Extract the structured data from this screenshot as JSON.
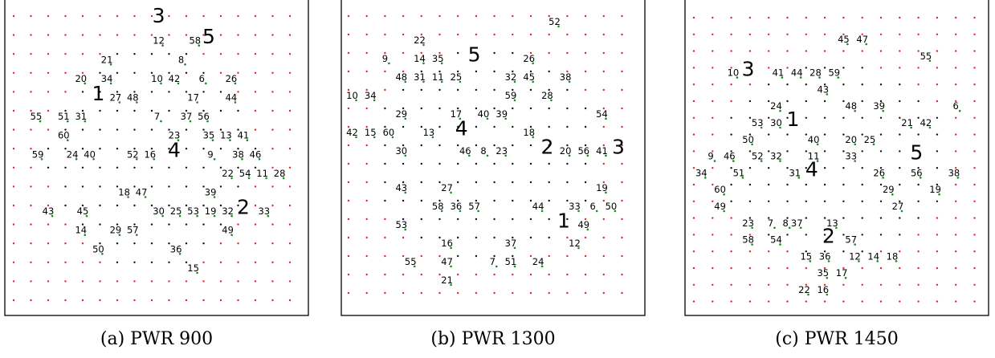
{
  "colors": {
    "outer_dot": "#e8202a",
    "inner_dot": "#111111",
    "marked_dot": "#1a8a1a",
    "blue_dot": "#2233aa",
    "text": "#000000"
  },
  "panels": [
    {
      "caption": "(a) PWR 900",
      "labels": [
        {
          "t": "3",
          "c": 8.4,
          "r": 0.0,
          "big": true
        },
        {
          "t": "12",
          "c": 8.4,
          "r": 1.3
        },
        {
          "t": "58",
          "c": 10.5,
          "r": 1.3
        },
        {
          "t": "5",
          "c": 11.3,
          "r": 1.1,
          "big": true
        },
        {
          "t": "21",
          "c": 5.4,
          "r": 2.3
        },
        {
          "t": "8",
          "c": 9.7,
          "r": 2.3
        },
        {
          "t": "20",
          "c": 3.9,
          "r": 3.3
        },
        {
          "t": "34",
          "c": 5.4,
          "r": 3.3
        },
        {
          "t": "10",
          "c": 8.3,
          "r": 3.3
        },
        {
          "t": "42",
          "c": 9.3,
          "r": 3.3
        },
        {
          "t": "6",
          "c": 10.9,
          "r": 3.3
        },
        {
          "t": "26",
          "c": 12.6,
          "r": 3.3
        },
        {
          "t": "1",
          "c": 4.9,
          "r": 4.1,
          "big": true
        },
        {
          "t": "27",
          "c": 5.9,
          "r": 4.3
        },
        {
          "t": "48",
          "c": 6.9,
          "r": 4.3
        },
        {
          "t": "17",
          "c": 10.4,
          "r": 4.3
        },
        {
          "t": "44",
          "c": 12.6,
          "r": 4.3
        },
        {
          "t": "55",
          "c": 1.3,
          "r": 5.3
        },
        {
          "t": "51",
          "c": 2.9,
          "r": 5.3
        },
        {
          "t": "31",
          "c": 3.9,
          "r": 5.3
        },
        {
          "t": "7",
          "c": 8.3,
          "r": 5.3
        },
        {
          "t": "37",
          "c": 10.0,
          "r": 5.3
        },
        {
          "t": "56",
          "c": 11.0,
          "r": 5.3
        },
        {
          "t": "60",
          "c": 2.9,
          "r": 6.3
        },
        {
          "t": "23",
          "c": 9.3,
          "r": 6.3
        },
        {
          "t": "35",
          "c": 11.3,
          "r": 6.3
        },
        {
          "t": "13",
          "c": 12.3,
          "r": 6.3
        },
        {
          "t": "41",
          "c": 13.3,
          "r": 6.3
        },
        {
          "t": "59",
          "c": 1.4,
          "r": 7.3
        },
        {
          "t": "24",
          "c": 3.4,
          "r": 7.3
        },
        {
          "t": "40",
          "c": 4.4,
          "r": 7.3
        },
        {
          "t": "52",
          "c": 6.9,
          "r": 7.3
        },
        {
          "t": "16",
          "c": 7.9,
          "r": 7.3
        },
        {
          "t": "4",
          "c": 9.3,
          "r": 7.1,
          "big": true
        },
        {
          "t": "9",
          "c": 11.4,
          "r": 7.3
        },
        {
          "t": "38",
          "c": 13.0,
          "r": 7.3
        },
        {
          "t": "46",
          "c": 14.0,
          "r": 7.3
        },
        {
          "t": "22",
          "c": 12.4,
          "r": 8.3
        },
        {
          "t": "54",
          "c": 13.4,
          "r": 8.3
        },
        {
          "t": "11",
          "c": 14.4,
          "r": 8.3
        },
        {
          "t": "28",
          "c": 15.4,
          "r": 8.3
        },
        {
          "t": "18",
          "c": 6.4,
          "r": 9.3
        },
        {
          "t": "47",
          "c": 7.4,
          "r": 9.3
        },
        {
          "t": "39",
          "c": 11.4,
          "r": 9.3
        },
        {
          "t": "43",
          "c": 2.0,
          "r": 10.3
        },
        {
          "t": "45",
          "c": 4.0,
          "r": 10.3
        },
        {
          "t": "30",
          "c": 8.4,
          "r": 10.3
        },
        {
          "t": "25",
          "c": 9.4,
          "r": 10.3
        },
        {
          "t": "53",
          "c": 10.4,
          "r": 10.3
        },
        {
          "t": "19",
          "c": 11.4,
          "r": 10.3
        },
        {
          "t": "32",
          "c": 12.4,
          "r": 10.3
        },
        {
          "t": "2",
          "c": 13.3,
          "r": 10.1,
          "big": true
        },
        {
          "t": "33",
          "c": 14.5,
          "r": 10.3
        },
        {
          "t": "14",
          "c": 3.9,
          "r": 11.3
        },
        {
          "t": "29",
          "c": 5.9,
          "r": 11.3
        },
        {
          "t": "57",
          "c": 6.9,
          "r": 11.3
        },
        {
          "t": "49",
          "c": 12.4,
          "r": 11.3
        },
        {
          "t": "50",
          "c": 4.9,
          "r": 12.3
        },
        {
          "t": "36",
          "c": 9.4,
          "r": 12.3
        },
        {
          "t": "15",
          "c": 10.4,
          "r": 13.3
        }
      ]
    },
    {
      "caption": "(b) PWR 1300",
      "labels": [
        {
          "t": "52",
          "c": 11.3,
          "r": 0.3
        },
        {
          "t": "22",
          "c": 3.9,
          "r": 1.3
        },
        {
          "t": "9",
          "c": 2.0,
          "r": 2.3
        },
        {
          "t": "14",
          "c": 3.9,
          "r": 2.3
        },
        {
          "t": "35",
          "c": 4.9,
          "r": 2.3
        },
        {
          "t": "5",
          "c": 6.9,
          "r": 2.1,
          "big": true
        },
        {
          "t": "26",
          "c": 9.9,
          "r": 2.3
        },
        {
          "t": "48",
          "c": 2.9,
          "r": 3.3
        },
        {
          "t": "31",
          "c": 3.9,
          "r": 3.3
        },
        {
          "t": "11",
          "c": 4.9,
          "r": 3.3
        },
        {
          "t": "25",
          "c": 5.9,
          "r": 3.3
        },
        {
          "t": "32",
          "c": 8.9,
          "r": 3.3
        },
        {
          "t": "45",
          "c": 9.9,
          "r": 3.3
        },
        {
          "t": "38",
          "c": 11.9,
          "r": 3.3
        },
        {
          "t": "10",
          "c": 0.2,
          "r": 4.3
        },
        {
          "t": "34",
          "c": 1.2,
          "r": 4.3
        },
        {
          "t": "59",
          "c": 8.9,
          "r": 4.3
        },
        {
          "t": "28",
          "c": 10.9,
          "r": 4.3
        },
        {
          "t": "29",
          "c": 2.9,
          "r": 5.3
        },
        {
          "t": "17",
          "c": 5.9,
          "r": 5.3
        },
        {
          "t": "40",
          "c": 7.4,
          "r": 5.3
        },
        {
          "t": "39",
          "c": 8.4,
          "r": 5.3
        },
        {
          "t": "54",
          "c": 13.9,
          "r": 5.3
        },
        {
          "t": "42",
          "c": 0.2,
          "r": 6.3
        },
        {
          "t": "15",
          "c": 1.2,
          "r": 6.3
        },
        {
          "t": "60",
          "c": 2.2,
          "r": 6.3
        },
        {
          "t": "13",
          "c": 4.4,
          "r": 6.3
        },
        {
          "t": "4",
          "c": 6.2,
          "r": 6.1,
          "big": true
        },
        {
          "t": "18",
          "c": 9.9,
          "r": 6.3
        },
        {
          "t": "30",
          "c": 2.9,
          "r": 7.3
        },
        {
          "t": "46",
          "c": 6.4,
          "r": 7.3
        },
        {
          "t": "8",
          "c": 7.4,
          "r": 7.3
        },
        {
          "t": "23",
          "c": 8.4,
          "r": 7.3
        },
        {
          "t": "2",
          "c": 10.9,
          "r": 7.1,
          "big": true
        },
        {
          "t": "20",
          "c": 11.9,
          "r": 7.3
        },
        {
          "t": "56",
          "c": 12.9,
          "r": 7.3
        },
        {
          "t": "41",
          "c": 13.9,
          "r": 7.3
        },
        {
          "t": "3",
          "c": 14.8,
          "r": 7.1,
          "big": true
        },
        {
          "t": "43",
          "c": 2.9,
          "r": 9.3
        },
        {
          "t": "27",
          "c": 5.4,
          "r": 9.3
        },
        {
          "t": "19",
          "c": 13.9,
          "r": 9.3
        },
        {
          "t": "58",
          "c": 4.9,
          "r": 10.3
        },
        {
          "t": "36",
          "c": 5.9,
          "r": 10.3
        },
        {
          "t": "57",
          "c": 6.9,
          "r": 10.3
        },
        {
          "t": "44",
          "c": 10.4,
          "r": 10.3
        },
        {
          "t": "33",
          "c": 12.4,
          "r": 10.3
        },
        {
          "t": "6",
          "c": 13.4,
          "r": 10.3
        },
        {
          "t": "50",
          "c": 14.4,
          "r": 10.3
        },
        {
          "t": "53",
          "c": 2.9,
          "r": 11.3
        },
        {
          "t": "1",
          "c": 11.8,
          "r": 11.1,
          "big": true
        },
        {
          "t": "49",
          "c": 12.9,
          "r": 11.3
        },
        {
          "t": "16",
          "c": 5.4,
          "r": 12.3
        },
        {
          "t": "37",
          "c": 8.9,
          "r": 12.3
        },
        {
          "t": "12",
          "c": 12.4,
          "r": 12.3
        },
        {
          "t": "55",
          "c": 3.4,
          "r": 13.3
        },
        {
          "t": "47",
          "c": 5.4,
          "r": 13.3
        },
        {
          "t": "7",
          "c": 7.9,
          "r": 13.3
        },
        {
          "t": "51",
          "c": 8.9,
          "r": 13.3
        },
        {
          "t": "24",
          "c": 10.4,
          "r": 13.3
        },
        {
          "t": "21",
          "c": 5.4,
          "r": 14.3
        }
      ]
    },
    {
      "caption": "(c) PWR 1450",
      "labels": [
        {
          "t": "45",
          "c": 8.0,
          "r": 1.3
        },
        {
          "t": "47",
          "c": 9.0,
          "r": 1.3
        },
        {
          "t": "55",
          "c": 12.4,
          "r": 2.3
        },
        {
          "t": "10",
          "c": 2.1,
          "r": 3.3
        },
        {
          "t": "3",
          "c": 2.9,
          "r": 3.1,
          "big": true
        },
        {
          "t": "41",
          "c": 4.5,
          "r": 3.3
        },
        {
          "t": "44",
          "c": 5.5,
          "r": 3.3
        },
        {
          "t": "28",
          "c": 6.5,
          "r": 3.3
        },
        {
          "t": "59",
          "c": 7.5,
          "r": 3.3
        },
        {
          "t": "43",
          "c": 6.9,
          "r": 4.3
        },
        {
          "t": "24",
          "c": 4.4,
          "r": 5.3
        },
        {
          "t": "48",
          "c": 8.4,
          "r": 5.3
        },
        {
          "t": "39",
          "c": 9.9,
          "r": 5.3
        },
        {
          "t": "6",
          "c": 14.0,
          "r": 5.3
        },
        {
          "t": "53",
          "c": 3.4,
          "r": 6.3
        },
        {
          "t": "30",
          "c": 4.4,
          "r": 6.3
        },
        {
          "t": "1",
          "c": 5.3,
          "r": 6.1,
          "big": true
        },
        {
          "t": "21",
          "c": 11.4,
          "r": 6.3
        },
        {
          "t": "42",
          "c": 12.4,
          "r": 6.3
        },
        {
          "t": "50",
          "c": 2.9,
          "r": 7.3
        },
        {
          "t": "40",
          "c": 6.4,
          "r": 7.3
        },
        {
          "t": "20",
          "c": 8.4,
          "r": 7.3
        },
        {
          "t": "25",
          "c": 9.4,
          "r": 7.3
        },
        {
          "t": "9",
          "c": 0.9,
          "r": 8.3
        },
        {
          "t": "46",
          "c": 1.9,
          "r": 8.3
        },
        {
          "t": "52",
          "c": 3.4,
          "r": 8.3
        },
        {
          "t": "32",
          "c": 4.4,
          "r": 8.3
        },
        {
          "t": "11",
          "c": 6.4,
          "r": 8.3
        },
        {
          "t": "33",
          "c": 8.4,
          "r": 8.3
        },
        {
          "t": "5",
          "c": 11.9,
          "r": 8.1,
          "big": true
        },
        {
          "t": "34",
          "c": 0.4,
          "r": 9.3
        },
        {
          "t": "51",
          "c": 2.4,
          "r": 9.3
        },
        {
          "t": "31",
          "c": 5.4,
          "r": 9.3
        },
        {
          "t": "4",
          "c": 6.3,
          "r": 9.1,
          "big": true
        },
        {
          "t": "26",
          "c": 9.9,
          "r": 9.3
        },
        {
          "t": "56",
          "c": 11.9,
          "r": 9.3
        },
        {
          "t": "38",
          "c": 13.9,
          "r": 9.3
        },
        {
          "t": "60",
          "c": 1.4,
          "r": 10.3
        },
        {
          "t": "29",
          "c": 10.4,
          "r": 10.3
        },
        {
          "t": "19",
          "c": 12.9,
          "r": 10.3
        },
        {
          "t": "49",
          "c": 1.4,
          "r": 11.3
        },
        {
          "t": "27",
          "c": 10.9,
          "r": 11.3
        },
        {
          "t": "23",
          "c": 2.9,
          "r": 12.3
        },
        {
          "t": "7",
          "c": 4.1,
          "r": 12.3
        },
        {
          "t": "8",
          "c": 4.9,
          "r": 12.3
        },
        {
          "t": "37",
          "c": 5.5,
          "r": 12.3
        },
        {
          "t": "13",
          "c": 7.4,
          "r": 12.3
        },
        {
          "t": "58",
          "c": 2.9,
          "r": 13.3
        },
        {
          "t": "54",
          "c": 4.4,
          "r": 13.3
        },
        {
          "t": "2",
          "c": 7.2,
          "r": 13.1,
          "big": true
        },
        {
          "t": "57",
          "c": 8.4,
          "r": 13.3
        },
        {
          "t": "15",
          "c": 6.0,
          "r": 14.3
        },
        {
          "t": "36",
          "c": 7.0,
          "r": 14.3
        },
        {
          "t": "12",
          "c": 8.6,
          "r": 14.3
        },
        {
          "t": "14",
          "c": 9.6,
          "r": 14.3
        },
        {
          "t": "18",
          "c": 10.6,
          "r": 14.3
        },
        {
          "t": "35",
          "c": 6.9,
          "r": 15.3
        },
        {
          "t": "17",
          "c": 7.9,
          "r": 15.3
        },
        {
          "t": "22",
          "c": 5.9,
          "r": 16.3
        },
        {
          "t": "16",
          "c": 6.9,
          "r": 16.3
        }
      ]
    }
  ]
}
